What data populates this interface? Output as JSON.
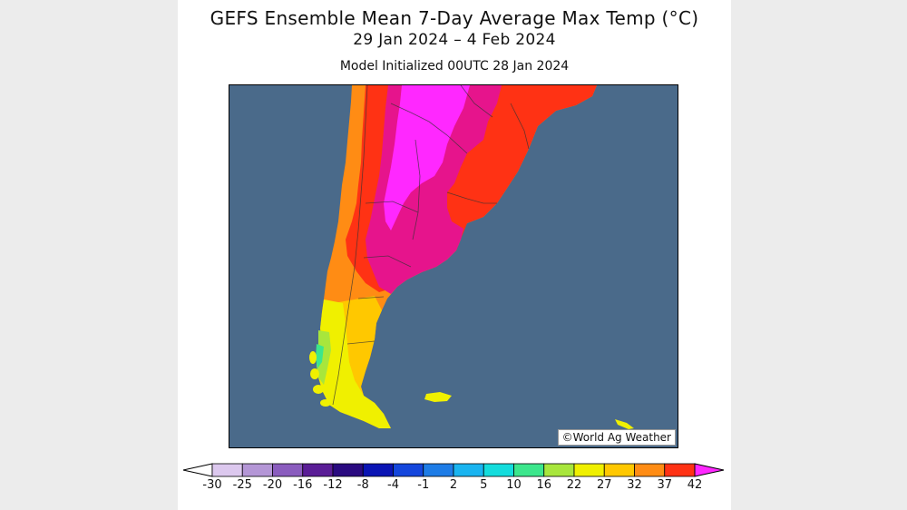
{
  "header": {
    "title": "GEFS Ensemble Mean 7-Day Average Max Temp (°C)",
    "date_range": "29 Jan 2024 – 4 Feb 2024",
    "initialized": "Model Initialized 00UTC 28 Jan 2024"
  },
  "map": {
    "credit": "©World Ag Weather",
    "ocean_color": "#4a6a8a"
  },
  "legend": {
    "ticks": [
      "-30",
      "-25",
      "-20",
      "-16",
      "-12",
      "-8",
      "-4",
      "-1",
      "2",
      "5",
      "10",
      "16",
      "22",
      "27",
      "32",
      "37",
      "42"
    ],
    "bin_colors": [
      "#dcc8ee",
      "#b496d6",
      "#8a5cbe",
      "#5a1d96",
      "#2a0a80",
      "#0a14b4",
      "#1446dc",
      "#1e7ce6",
      "#19b4f0",
      "#14dcdc",
      "#3ce68c",
      "#a8e63c",
      "#f0f000",
      "#ffc800",
      "#ff8c14",
      "#ff3214",
      "#e6148c",
      "#ff28ff"
    ],
    "low_arrow_color": "#ffffff",
    "high_arrow_color": "#ff28ff"
  }
}
